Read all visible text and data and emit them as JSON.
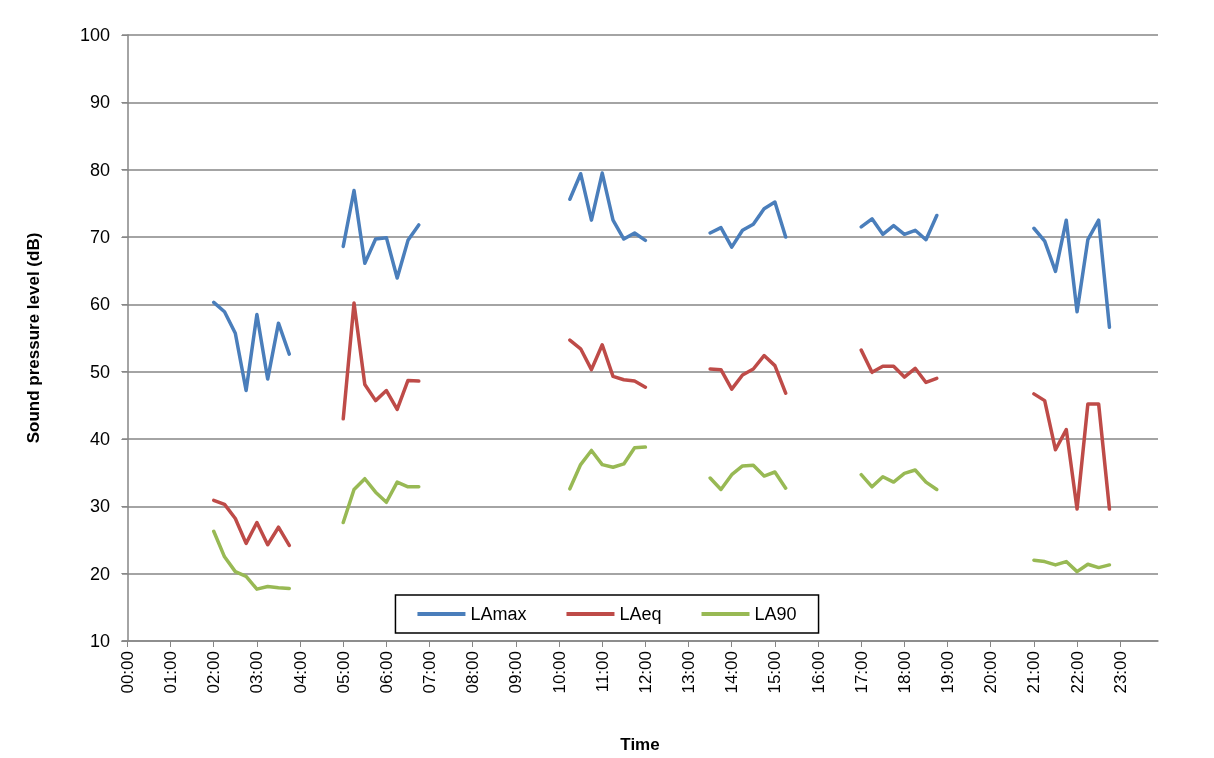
{
  "chart_data": {
    "type": "line",
    "xlabel": "Time",
    "ylabel": "Sound pressure level (dB)",
    "x": [
      2,
      2.25,
      2.5,
      2.75,
      3,
      3.25,
      3.5,
      3.75,
      4.5,
      5,
      5.25,
      5.5,
      5.75,
      6,
      6.25,
      6.5,
      6.75,
      8.5,
      10.25,
      10.5,
      10.75,
      11,
      11.25,
      11.5,
      11.75,
      12,
      12.75,
      13.5,
      13.75,
      14,
      14.25,
      14.5,
      14.75,
      15,
      15.25,
      16,
      17,
      17.25,
      17.5,
      17.75,
      18,
      18.25,
      18.5,
      18.75,
      20,
      21,
      21.25,
      21.5,
      21.75,
      22,
      22.25,
      22.5,
      22.75
    ],
    "series": [
      {
        "name": "LAmax",
        "color": "#4a7ebb",
        "values": [
          60.3,
          58.9,
          55.7,
          47.2,
          58.5,
          48.9,
          57.2,
          52.6,
          null,
          68.6,
          76.9,
          66.1,
          69.7,
          69.9,
          63.9,
          69.5,
          71.8,
          null,
          75.6,
          79.4,
          72.5,
          79.5,
          72.5,
          69.7,
          70.6,
          69.5,
          null,
          70.6,
          71.4,
          68.5,
          71.0,
          71.9,
          74.2,
          75.2,
          70.0,
          null,
          71.5,
          72.7,
          70.4,
          71.7,
          70.4,
          71.0,
          69.6,
          73.2,
          null,
          71.3,
          69.4,
          64.9,
          72.5,
          58.9,
          69.6,
          72.5,
          56.6
        ]
      },
      {
        "name": "LAeq",
        "color": "#be4b48",
        "values": [
          30.9,
          30.3,
          28.2,
          24.5,
          27.6,
          24.3,
          26.9,
          24.2,
          null,
          43.0,
          60.2,
          48.1,
          45.7,
          47.2,
          44.4,
          48.7,
          48.6,
          null,
          54.7,
          53.4,
          50.3,
          54.0,
          49.3,
          48.8,
          48.6,
          47.7,
          null,
          50.4,
          50.3,
          47.4,
          49.5,
          50.4,
          52.4,
          50.9,
          46.8,
          null,
          53.2,
          49.9,
          50.8,
          50.8,
          49.2,
          50.5,
          48.4,
          49.0,
          null,
          46.7,
          45.7,
          38.4,
          41.4,
          29.6,
          45.2,
          45.2,
          29.6
        ]
      },
      {
        "name": "LA90",
        "color": "#98b954",
        "values": [
          26.3,
          22.5,
          20.3,
          19.6,
          17.7,
          18.1,
          17.9,
          17.8,
          null,
          27.6,
          32.5,
          34.1,
          32.1,
          30.6,
          33.6,
          32.9,
          32.9,
          null,
          32.6,
          36.2,
          38.3,
          36.2,
          35.8,
          36.3,
          38.7,
          38.8,
          null,
          34.2,
          32.5,
          34.7,
          36.0,
          36.1,
          34.5,
          35.1,
          32.7,
          null,
          34.7,
          32.9,
          34.4,
          33.6,
          34.9,
          35.4,
          33.6,
          32.5,
          null,
          22.0,
          21.8,
          21.3,
          21.8,
          20.3,
          21.4,
          20.9,
          21.3
        ]
      }
    ],
    "xlim": [
      -0.125,
      23.875
    ],
    "xticks": [
      {
        "value": 0,
        "label": "00:00"
      },
      {
        "value": 1,
        "label": "01:00"
      },
      {
        "value": 2,
        "label": "02:00"
      },
      {
        "value": 3,
        "label": "03:00"
      },
      {
        "value": 4,
        "label": "04:00"
      },
      {
        "value": 5,
        "label": "05:00"
      },
      {
        "value": 6,
        "label": "06:00"
      },
      {
        "value": 7,
        "label": "07:00"
      },
      {
        "value": 8,
        "label": "08:00"
      },
      {
        "value": 9,
        "label": "09:00"
      },
      {
        "value": 10,
        "label": "10:00"
      },
      {
        "value": 11,
        "label": "11:00"
      },
      {
        "value": 12,
        "label": "12:00"
      },
      {
        "value": 13,
        "label": "13:00"
      },
      {
        "value": 14,
        "label": "14:00"
      },
      {
        "value": 15,
        "label": "15:00"
      },
      {
        "value": 16,
        "label": "16:00"
      },
      {
        "value": 17,
        "label": "17:00"
      },
      {
        "value": 18,
        "label": "18:00"
      },
      {
        "value": 19,
        "label": "19:00"
      },
      {
        "value": 20,
        "label": "20:00"
      },
      {
        "value": 21,
        "label": "21:00"
      },
      {
        "value": 22,
        "label": "22:00"
      },
      {
        "value": 23,
        "label": "23:00"
      }
    ],
    "ylim": [
      10,
      100
    ],
    "yticks": [
      10,
      20,
      30,
      40,
      50,
      60,
      70,
      80,
      90,
      100
    ],
    "grid": "y",
    "legend": "bottom",
    "marker": "none",
    "line_style": "solid"
  }
}
